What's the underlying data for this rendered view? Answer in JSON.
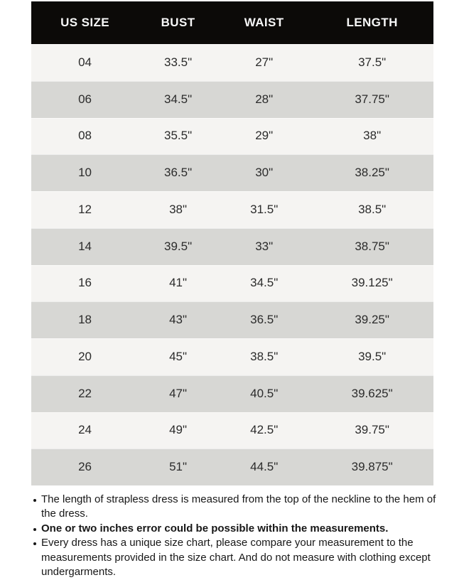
{
  "chart_data": {
    "type": "table",
    "columns": [
      "US SIZE",
      "BUST",
      "WAIST",
      "LENGTH"
    ],
    "rows": [
      [
        "04",
        "33.5\"",
        "27\"",
        "37.5\""
      ],
      [
        "06",
        "34.5\"",
        "28\"",
        "37.75\""
      ],
      [
        "08",
        "35.5\"",
        "29\"",
        "38\""
      ],
      [
        "10",
        "36.5\"",
        "30\"",
        "38.25\""
      ],
      [
        "12",
        "38\"",
        "31.5\"",
        "38.5\""
      ],
      [
        "14",
        "39.5\"",
        "33\"",
        "38.75\""
      ],
      [
        "16",
        "41\"",
        "34.5\"",
        "39.125\""
      ],
      [
        "18",
        "43\"",
        "36.5\"",
        "39.25\""
      ],
      [
        "20",
        "45\"",
        "38.5\"",
        "39.5\""
      ],
      [
        "22",
        "47\"",
        "40.5\"",
        "39.625\""
      ],
      [
        "24",
        "49\"",
        "42.5\"",
        "39.75\""
      ],
      [
        "26",
        "51\"",
        "44.5\"",
        "39.875\""
      ]
    ],
    "layout": {
      "striped": true,
      "header_bg": "#0c0a08",
      "header_text": "#f7f7f7",
      "row_light_bg": "#f5f4f2",
      "row_dark_bg": "#d7d7d4",
      "cell_text": "#2b2b2b"
    }
  },
  "notes": [
    {
      "text": "The length of strapless dress is measured from the top of the neckline to the hem of the dress.",
      "bold": false
    },
    {
      "text": "One or two inches error could be possible within the measurements.",
      "bold": true
    },
    {
      "text": "Every dress has a unique size chart, please compare your measurement to the measurements provided in the size chart. And do not measure with clothing except undergarments.",
      "bold": false
    }
  ]
}
